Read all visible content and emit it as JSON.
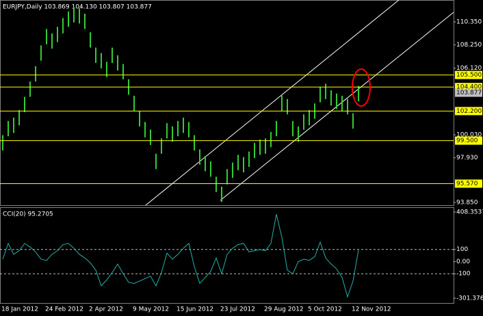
{
  "chart_data": [
    {
      "type": "range-bar",
      "title": "EURJPY,Daily  103.869 104.130 103.807 103.877",
      "categories": [
        "18 Jan 2012",
        null,
        null,
        null,
        null,
        null,
        null,
        null,
        "24 Feb 2012",
        null,
        null,
        null,
        null,
        null,
        null,
        null,
        "2 Apr 2012",
        null,
        null,
        null,
        null,
        null,
        null,
        null,
        "9 May 2012",
        null,
        null,
        null,
        null,
        null,
        null,
        null,
        "15 Jun 2012",
        null,
        null,
        null,
        null,
        null,
        null,
        null,
        "23 Jul 2012",
        null,
        null,
        null,
        null,
        null,
        null,
        null,
        "29 Aug 2012",
        null,
        null,
        null,
        null,
        null,
        null,
        null,
        "5 Oct 2012",
        null,
        null,
        null,
        null,
        null,
        null,
        null,
        "12 Nov 2012",
        null
      ],
      "high": [
        100.0,
        101.3,
        101.6,
        102.3,
        103.5,
        104.9,
        106.3,
        108.2,
        109.7,
        109.3,
        109.9,
        110.7,
        111.3,
        111.7,
        111.6,
        111.1,
        109.4,
        108.0,
        107.5,
        106.7,
        108.0,
        107.3,
        106.5,
        105.1,
        103.6,
        102.2,
        101.2,
        100.5,
        98.3,
        99.7,
        101.1,
        100.8,
        101.3,
        101.6,
        101.2,
        100.0,
        98.7,
        98.1,
        97.6,
        96.2,
        95.3,
        96.9,
        97.5,
        98.2,
        98.0,
        98.5,
        99.3,
        99.6,
        99.7,
        100.3,
        101.3,
        103.6,
        103.3,
        101.3,
        100.8,
        101.9,
        102.3,
        102.9,
        104.4,
        104.7,
        104.1,
        103.8,
        103.6,
        103.3,
        102.0,
        104.5
      ],
      "low": [
        98.6,
        99.9,
        100.2,
        100.9,
        102.1,
        103.5,
        104.9,
        106.8,
        108.3,
        107.9,
        108.5,
        109.3,
        109.9,
        110.3,
        110.2,
        109.7,
        108.0,
        106.6,
        106.1,
        105.3,
        106.6,
        105.9,
        105.1,
        103.7,
        102.2,
        100.8,
        99.8,
        99.1,
        96.9,
        98.3,
        99.7,
        99.4,
        99.9,
        100.2,
        99.8,
        98.6,
        97.3,
        96.7,
        96.2,
        94.8,
        93.9,
        95.5,
        96.1,
        96.8,
        96.6,
        97.1,
        97.9,
        98.2,
        98.3,
        98.9,
        99.9,
        102.2,
        101.9,
        99.9,
        99.4,
        100.5,
        100.9,
        101.5,
        103.0,
        103.3,
        102.7,
        102.4,
        102.2,
        101.9,
        100.6,
        103.1
      ],
      "color": "#32cd32",
      "ylim": [
        93.6,
        112.35
      ],
      "yticks": [
        {
          "value": 110.35,
          "label": "110.350"
        },
        {
          "value": 108.25,
          "label": "108.250"
        },
        {
          "value": 106.12,
          "label": "106.120"
        },
        {
          "value": 100.03,
          "label": "100.030"
        },
        {
          "value": 97.93,
          "label": "97.930"
        },
        {
          "value": 93.85,
          "label": "93.850"
        }
      ],
      "levels": [
        {
          "value": 105.5,
          "label": "105.500"
        },
        {
          "value": 104.4,
          "label": "104.400"
        },
        {
          "value": 102.2,
          "label": "102.200"
        },
        {
          "value": 99.5,
          "label": "99.500"
        },
        {
          "value": 95.57,
          "label": "95.570"
        }
      ],
      "level_color": "#ffff00",
      "last_price": 103.877
    },
    {
      "type": "line",
      "title": "CCI(20) 95.2705",
      "values": [
        20,
        150,
        60,
        90,
        150,
        120,
        80,
        20,
        10,
        60,
        90,
        140,
        150,
        110,
        60,
        30,
        -10,
        -70,
        -200,
        -150,
        -90,
        -20,
        -100,
        -170,
        -180,
        -160,
        -140,
        -120,
        -200,
        -90,
        70,
        20,
        60,
        110,
        150,
        -40,
        -180,
        -130,
        -80,
        30,
        -100,
        60,
        110,
        140,
        150,
        80,
        90,
        100,
        90,
        150,
        390,
        200,
        -70,
        -100,
        0,
        20,
        10,
        40,
        160,
        30,
        -20,
        -60,
        -130,
        -290,
        -160,
        95.2705
      ],
      "color": "#20b2aa",
      "ylim": [
        -301.376,
        408.3537
      ],
      "yticks": [
        408.3537,
        100,
        {
          "value": 0,
          "label": "0.00"
        },
        -100,
        -301.376
      ],
      "levels": [
        100,
        -100
      ]
    }
  ]
}
